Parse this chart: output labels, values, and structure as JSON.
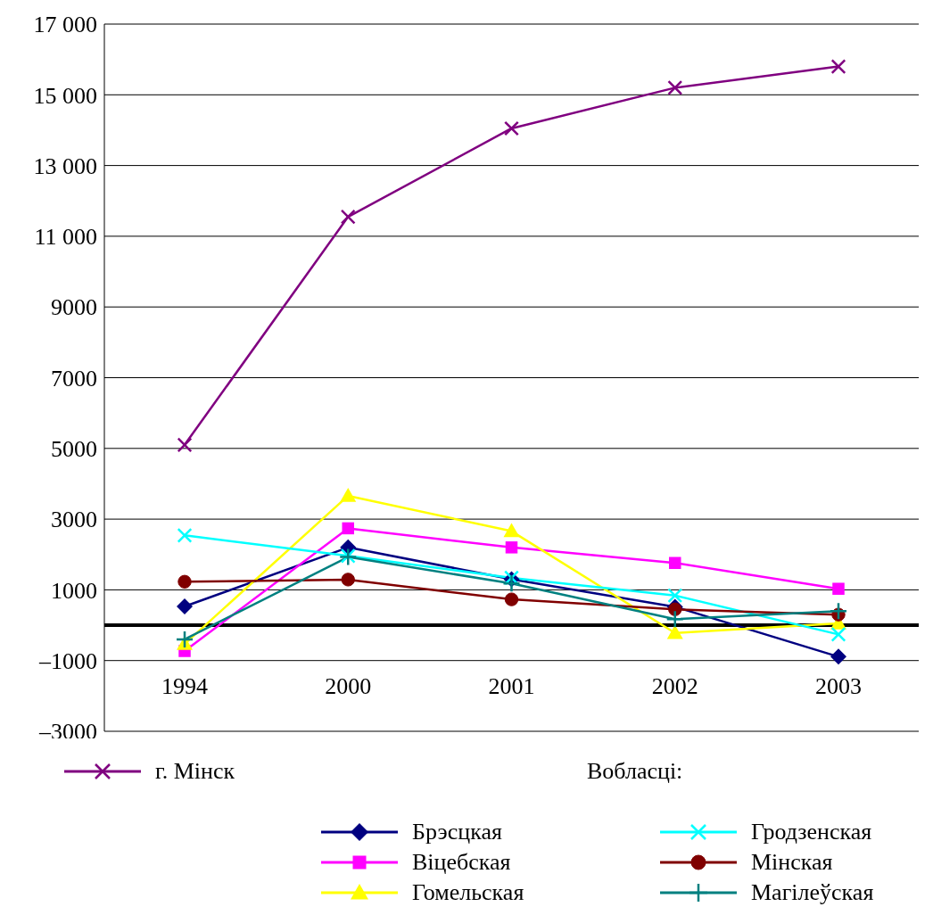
{
  "chart_data": {
    "type": "line",
    "categories": [
      "1994",
      "2000",
      "2001",
      "2002",
      "2003"
    ],
    "series": [
      {
        "name": "г. Мінск",
        "color": "#800080",
        "marker": "cross",
        "values": [
          5100,
          11550,
          14050,
          15200,
          15800
        ]
      },
      {
        "name": "Брэсцкая",
        "color": "#000080",
        "marker": "diamond",
        "values": [
          530,
          2200,
          1300,
          520,
          -890
        ]
      },
      {
        "name": "Віцебская",
        "color": "#ff00ff",
        "marker": "square",
        "values": [
          -730,
          2740,
          2200,
          1760,
          1030
        ]
      },
      {
        "name": "Гомельская",
        "color": "#ffff00",
        "marker": "triangle",
        "values": [
          -530,
          3660,
          2660,
          -220,
          50
        ]
      },
      {
        "name": "Гродзенская",
        "color": "#00ffff",
        "marker": "cross",
        "values": [
          2540,
          1960,
          1340,
          840,
          -260
        ]
      },
      {
        "name": "Мінская",
        "color": "#800000",
        "marker": "circle",
        "values": [
          1230,
          1290,
          730,
          450,
          300
        ]
      },
      {
        "name": "Магілеўская",
        "color": "#008080",
        "marker": "plus",
        "values": [
          -400,
          1930,
          1180,
          170,
          400
        ]
      }
    ],
    "ylim": [
      -3000,
      17000
    ],
    "yticks": [
      {
        "value": -3000,
        "label": "–3000"
      },
      {
        "value": -1000,
        "label": "–1000"
      },
      1000,
      3000,
      5000,
      7000,
      9000,
      {
        "value": 11000,
        "label": "11 000"
      },
      {
        "value": 13000,
        "label": "13 000"
      },
      {
        "value": 15000,
        "label": "15 000"
      },
      {
        "value": 17000,
        "label": "17 000"
      }
    ],
    "grid": "y",
    "legend": "bottom",
    "legend_title": "Вобласці:"
  }
}
